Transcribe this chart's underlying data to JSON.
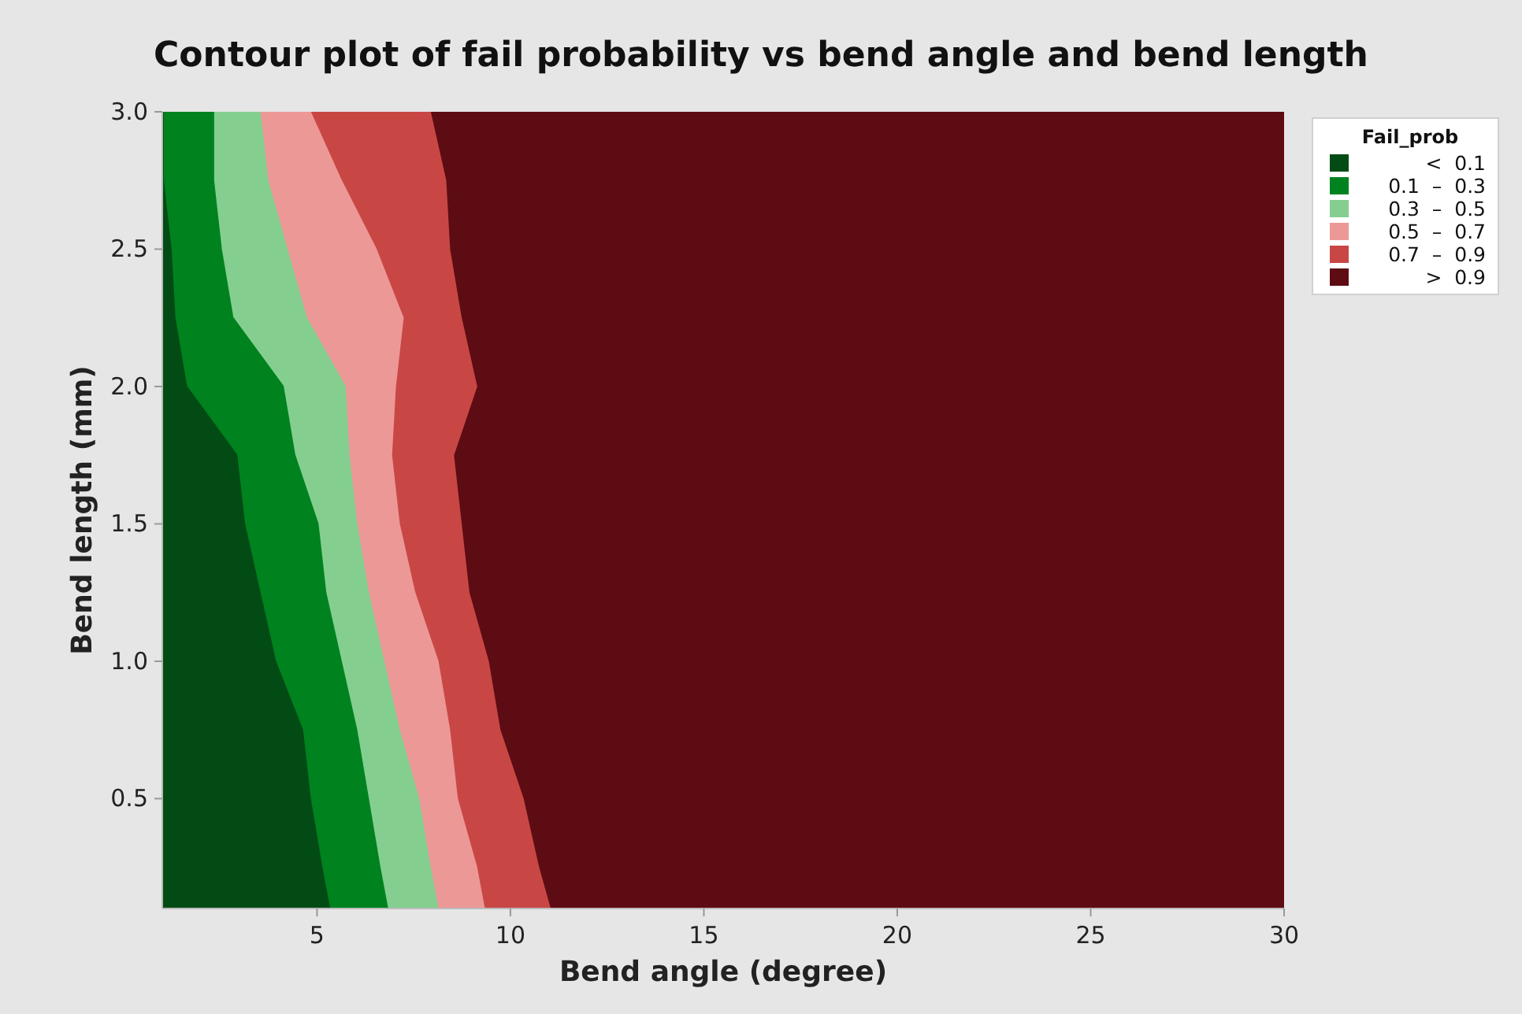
{
  "chart_data": {
    "type": "area",
    "orientation": "horizontal",
    "title": "Contour plot of fail probability vs bend angle and bend length",
    "xlabel": "Bend angle (degree)",
    "ylabel": "Bend length (mm)",
    "legend_title": "Fail_prob",
    "legend": "top right",
    "grid": false,
    "x": [
      3.0,
      2.75,
      2.5,
      2.25,
      2.0,
      1.75,
      1.5,
      1.25,
      1.0,
      0.75,
      0.5,
      0.25,
      0.1
    ],
    "series": [
      {
        "name": "<  0.1",
        "color": "#034b15",
        "values": [
          1.0,
          1.0,
          1.2,
          1.3,
          1.6,
          2.9,
          3.1,
          3.5,
          3.9,
          4.6,
          4.8,
          5.1,
          5.3
        ]
      },
      {
        "name": "0.1  –  0.3",
        "color": "#00821f",
        "values": [
          2.3,
          2.3,
          2.5,
          2.8,
          4.1,
          4.4,
          5.0,
          5.2,
          5.6,
          6.0,
          6.3,
          6.6,
          6.8
        ]
      },
      {
        "name": "0.3  –  0.5",
        "color": "#84cf8f",
        "values": [
          3.5,
          3.7,
          4.2,
          4.7,
          5.7,
          5.8,
          6.0,
          6.3,
          6.7,
          7.1,
          7.6,
          7.9,
          8.1
        ]
      },
      {
        "name": "0.5  –  0.7",
        "color": "#ec9896",
        "values": [
          4.8,
          5.6,
          6.5,
          7.2,
          7.0,
          6.9,
          7.1,
          7.5,
          8.1,
          8.4,
          8.6,
          9.1,
          9.3
        ]
      },
      {
        "name": "0.7  –  0.9",
        "color": "#c84745",
        "values": [
          7.9,
          8.3,
          8.4,
          8.7,
          9.1,
          8.5,
          8.7,
          8.9,
          9.4,
          9.7,
          10.3,
          10.7,
          11.0
        ]
      },
      {
        "name": ">  0.9",
        "color": "#5e0c13",
        "values": [
          30,
          30,
          30,
          30,
          30,
          30,
          30,
          30,
          30,
          30,
          30,
          30,
          30
        ]
      }
    ],
    "xlim": [
      1,
      30
    ],
    "xticks": [
      5,
      10,
      15,
      20,
      25,
      30
    ],
    "ylim": [
      0.1,
      3.0
    ],
    "yticks": [
      0.5,
      {
        "value": 1.0,
        "label": "1.0"
      },
      1.5,
      {
        "value": 2.0,
        "label": "2.0"
      },
      2.5,
      {
        "value": 3.0,
        "label": "3.0"
      }
    ]
  }
}
